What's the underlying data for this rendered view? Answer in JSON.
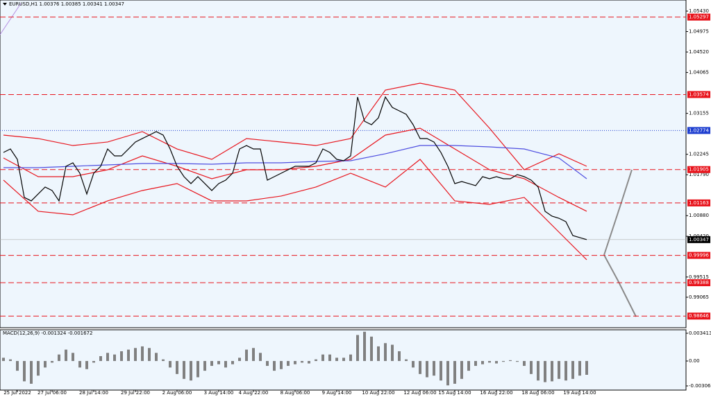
{
  "chart_data": {
    "type": "price",
    "title": "EURUSD,H1  1.00376 1.00385 1.00341 1.00347",
    "categories": [
      null,
      null,
      "25 Jul 2022",
      null,
      null,
      null,
      null,
      "27 Jul 06:00",
      null,
      null,
      null,
      null,
      null,
      "28 Jul 14:00",
      null,
      null,
      null,
      null,
      null,
      "29 Jul 22:00",
      null,
      null,
      null,
      null,
      null,
      "2 Aug 06:00",
      null,
      null,
      null,
      null,
      null,
      "3 Aug 14:00",
      null,
      null,
      null,
      null,
      "4 Aug 22:00",
      null,
      null,
      null,
      null,
      null,
      "8 Aug 06:00",
      null,
      null,
      null,
      null,
      null,
      "9 Aug 14:00",
      null,
      null,
      null,
      null,
      null,
      "10 Aug 22:00",
      null,
      null,
      null,
      null,
      null,
      "12 Aug 06:00",
      null,
      null,
      null,
      null,
      "15 Aug 14:00",
      null,
      null,
      null,
      null,
      null,
      "16 Aug 22:00",
      null,
      null,
      null,
      null,
      null,
      "18 Aug 06:00",
      null,
      null,
      null,
      null,
      null,
      "19 Aug 14:00",
      null
    ],
    "values": [
      1.02286,
      1.02363,
      1.02132,
      1.01285,
      1.01208,
      1.01362,
      1.01516,
      1.01439,
      1.01208,
      1.01978,
      1.02055,
      1.01824,
      1.01362,
      1.01824,
      1.01978,
      1.02363,
      1.02209,
      1.02209,
      1.02363,
      1.02518,
      1.02595,
      1.02672,
      1.02749,
      1.02672,
      1.02363,
      1.01978,
      1.01747,
      1.01593,
      1.01747,
      1.01593,
      1.01439,
      1.01593,
      1.0167,
      1.01824,
      1.02363,
      1.0244,
      1.02363,
      1.02363,
      1.0167,
      1.01747,
      1.01824,
      1.01901,
      1.01978,
      1.01978,
      1.01978,
      1.02055,
      1.02363,
      1.02286,
      1.02132,
      1.02101,
      1.02209,
      1.03519,
      1.0298,
      1.02903,
      1.03057,
      1.03519,
      1.03288,
      1.03211,
      1.03134,
      1.02903,
      1.02595,
      1.02595,
      1.02518,
      1.02286,
      1.01978,
      1.01593,
      1.01639,
      1.01593,
      1.01547,
      1.01747,
      1.01701,
      1.01747,
      1.01701,
      1.01701,
      1.01793,
      1.01747,
      1.0167,
      1.01516,
      1.00977,
      1.00869,
      1.00822,
      1.00745,
      1.00437,
      1.00391,
      1.00347
    ],
    "color": "#000000",
    "overlays": [
      {
        "color": "#e8141c",
        "x": [
          0,
          5,
          10,
          15,
          20,
          25,
          30,
          35,
          40,
          45,
          50,
          55,
          60,
          65,
          70,
          75,
          80,
          84
        ],
        "values": [
          1.02672,
          1.02595,
          1.0244,
          1.02518,
          1.02749,
          1.02363,
          1.02132,
          1.02595,
          1.02518,
          1.0244,
          1.02595,
          1.03673,
          1.03827,
          1.03673,
          1.02826,
          1.01901,
          1.02256,
          1.01978
        ]
      },
      {
        "color": "#e8141c",
        "x": [
          0,
          5,
          10,
          15,
          20,
          25,
          30,
          35,
          40,
          45,
          50,
          55,
          60,
          65,
          70,
          75,
          80,
          84
        ],
        "values": [
          1.02163,
          1.01747,
          1.01747,
          1.01901,
          1.02209,
          1.01978,
          1.01701,
          1.01901,
          1.01901,
          1.01978,
          1.02132,
          1.02672,
          1.02826,
          1.02363,
          1.01901,
          1.01701,
          1.01285,
          1.00977
        ]
      },
      {
        "color": "#e8141c",
        "x": [
          0,
          5,
          10,
          15,
          20,
          25,
          30,
          35,
          40,
          45,
          50,
          55,
          60,
          65,
          70,
          75,
          80,
          84
        ],
        "values": [
          1.0167,
          1.00977,
          1.00899,
          1.01208,
          1.01439,
          1.01593,
          1.01208,
          1.01208,
          1.01316,
          1.01516,
          1.01824,
          1.01516,
          1.02132,
          1.01208,
          1.01131,
          1.01285,
          1.00514,
          0.99898
        ]
      },
      {
        "color": "#4d4de0",
        "x": [
          0,
          5,
          10,
          15,
          20,
          25,
          30,
          35,
          40,
          45,
          50,
          55,
          60,
          65,
          70,
          75,
          80,
          84
        ],
        "values": [
          1.01947,
          1.01947,
          1.01978,
          1.02009,
          1.0204,
          1.0204,
          1.02024,
          1.02055,
          1.02055,
          1.02086,
          1.02101,
          1.02256,
          1.0244,
          1.0244,
          1.0241,
          1.02363,
          1.02163,
          1.01701
        ]
      }
    ],
    "ylim": [
      0.98387,
      1.05677
    ],
    "yticks": [
      {
        "value": 1.0543,
        "label": "1.05430"
      },
      1.04975,
      {
        "value": 1.0452,
        "label": "1.04520"
      },
      1.04065,
      1.03155,
      1.02245,
      {
        "value": 1.0179,
        "label": "1.01790"
      },
      {
        "value": 1.0088,
        "label": "1.00880"
      },
      {
        "value": 1.0042,
        "label": "1.00420"
      },
      0.99515,
      0.99065
    ],
    "levels": [
      1.05297,
      1.03574,
      1.01905,
      1.01163,
      0.99996,
      0.99388,
      0.98646
    ],
    "level_color": "#e8141c",
    "pivot": 1.02774,
    "pivot_color": "#1f3fd0",
    "last_price": 1.00347,
    "macd": {
      "title": "MACD(12,26,9) -0.001324 -0.001672",
      "color": "#808080",
      "values": [
        0.0004,
        0.0002,
        -0.0012,
        -0.0025,
        -0.0028,
        -0.0018,
        -0.0008,
        -0.0002,
        0.0008,
        0.0014,
        0.001,
        -0.0008,
        -0.001,
        -0.0002,
        0.0006,
        0.001,
        0.0008,
        0.0012,
        0.0014,
        0.0016,
        0.0018,
        0.0016,
        0.001,
        0.0002,
        -0.0008,
        -0.0016,
        -0.0022,
        -0.0024,
        -0.002,
        -0.0012,
        -0.0006,
        -0.0004,
        -0.0008,
        -0.0004,
        0.0004,
        0.0014,
        0.0016,
        0.001,
        -0.0006,
        -0.0012,
        -0.001,
        -0.0006,
        -0.0004,
        -0.0002,
        -0.0003,
        0.0002,
        0.0008,
        0.0008,
        0.0004,
        0.0004,
        0.0008,
        0.0032,
        0.0036,
        0.003,
        0.0018,
        0.0022,
        0.002,
        0.0012,
        0.0002,
        -0.0008,
        -0.0016,
        -0.002,
        -0.0018,
        -0.0024,
        -0.003,
        -0.0028,
        -0.0022,
        -0.0012,
        -0.0006,
        -0.0004,
        -0.0002,
        -0.0003,
        -0.0001,
        0.0001,
        -0.0001,
        -0.0006,
        -0.0016,
        -0.0024,
        -0.0026,
        -0.0025,
        -0.0022,
        -0.0024,
        -0.0022,
        -0.0018,
        -0.0017
      ],
      "ylim": [
        -0.003576,
        0.003839
      ],
      "yticks": [
        0.003413,
        {
          "value": 0,
          "label": "0.00"
        },
        -0.003065
      ]
    }
  }
}
